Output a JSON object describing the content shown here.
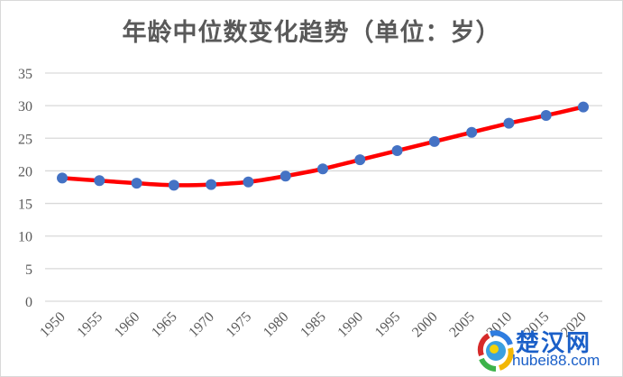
{
  "chart_data": {
    "type": "line",
    "title": "年龄中位数变化趋势（单位：岁）",
    "xlabel": "",
    "ylabel": "",
    "categories": [
      "1950",
      "1955",
      "1960",
      "1965",
      "1970",
      "1975",
      "1980",
      "1985",
      "1990",
      "1995",
      "2000",
      "2005",
      "2010",
      "2015",
      "2020"
    ],
    "series": [
      {
        "name": "年龄中位数",
        "values": [
          18.9,
          18.5,
          18.1,
          17.8,
          17.9,
          18.3,
          19.2,
          20.3,
          21.7,
          23.1,
          24.5,
          25.9,
          27.3,
          28.5,
          29.8
        ],
        "line_color": "#ff0000",
        "marker_color": "#4472c4"
      }
    ],
    "ylim": [
      0,
      35
    ],
    "yticks": [
      0,
      5,
      10,
      15,
      20,
      25,
      30,
      35
    ],
    "grid": true,
    "legend": "none"
  },
  "watermark": {
    "name_cn": "楚汉网",
    "url": "hubei88.com"
  }
}
